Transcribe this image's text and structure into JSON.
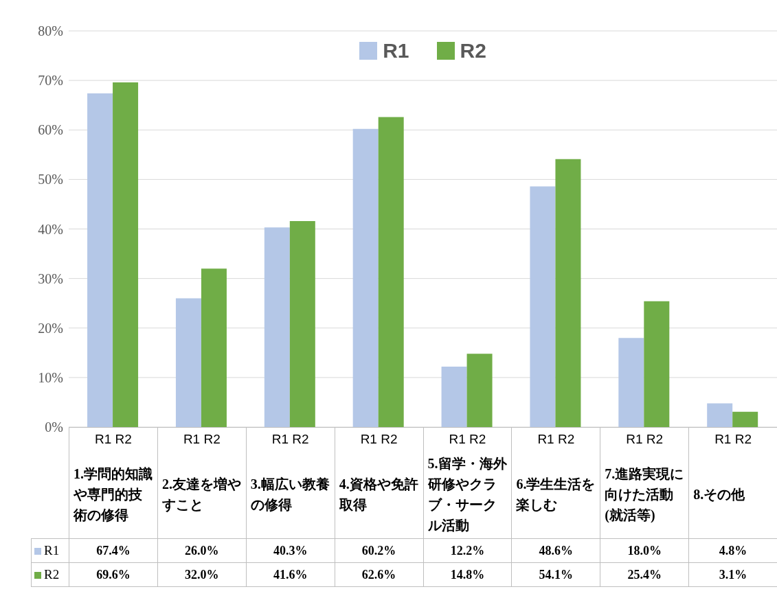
{
  "chart_data": {
    "type": "bar",
    "categories": [
      "1.学問的知識や専門的技術の修得",
      "2.友達を増やすこと",
      "3.幅広い教養の修得",
      "4.資格や免許取得",
      "5.留学・海外研修やクラブ・サークル活動",
      "6.学生生活を楽しむ",
      "7.進路実現に向けた活動(就活等)",
      "8.その他"
    ],
    "series": [
      {
        "name": "R1",
        "color": "#b4c7e7",
        "values": [
          67.4,
          26.0,
          40.3,
          60.2,
          12.2,
          48.6,
          18.0,
          4.8
        ],
        "value_labels": [
          "67.4%",
          "26.0%",
          "40.3%",
          "60.2%",
          "12.2%",
          "48.6%",
          "18.0%",
          "4.8%"
        ]
      },
      {
        "name": "R2",
        "color": "#70ad47",
        "values": [
          69.6,
          32.0,
          41.6,
          62.6,
          14.8,
          54.1,
          25.4,
          3.1
        ],
        "value_labels": [
          "69.6%",
          "32.0%",
          "41.6%",
          "62.6%",
          "14.8%",
          "54.1%",
          "25.4%",
          "3.1%"
        ]
      }
    ],
    "ylim": [
      0,
      80
    ],
    "yticks": [
      {
        "value": 0,
        "label": "0%"
      },
      {
        "value": 10,
        "label": "10%"
      },
      {
        "value": 20,
        "label": "20%"
      },
      {
        "value": 30,
        "label": "30%"
      },
      {
        "value": 40,
        "label": "40%"
      },
      {
        "value": 50,
        "label": "50%"
      },
      {
        "value": 60,
        "label": "60%"
      },
      {
        "value": 70,
        "label": "70%"
      },
      {
        "value": 80,
        "label": "80%"
      }
    ],
    "grid": "y",
    "legend": "top"
  }
}
